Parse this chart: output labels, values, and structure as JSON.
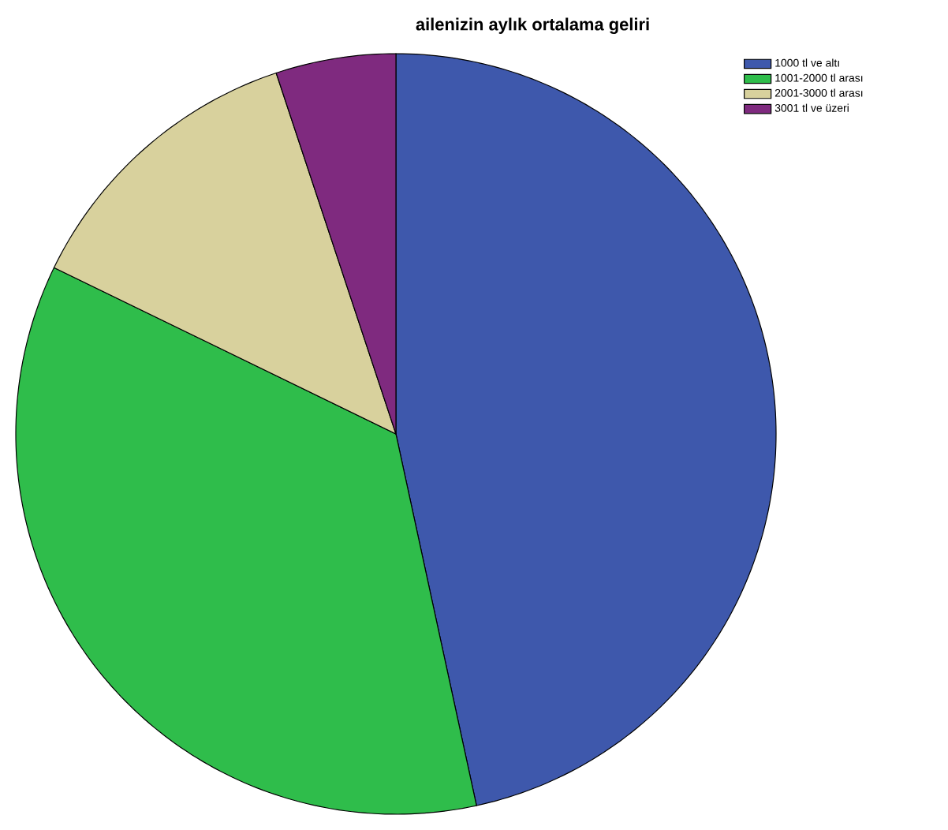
{
  "chart_data": {
    "type": "pie",
    "title": "ailenizin aylık ortalama geliri",
    "categories": [
      "1000 tl ve altı",
      "1001-2000 tl arası",
      "2001-3000 tl arası",
      "3001 tl ve üzeri"
    ],
    "values": [
      46.6,
      35.6,
      12.7,
      5.1
    ],
    "colors": [
      "#3e58ac",
      "#2fbd4b",
      "#d8d19d",
      "#7f2a7f"
    ],
    "legend": "top right"
  }
}
